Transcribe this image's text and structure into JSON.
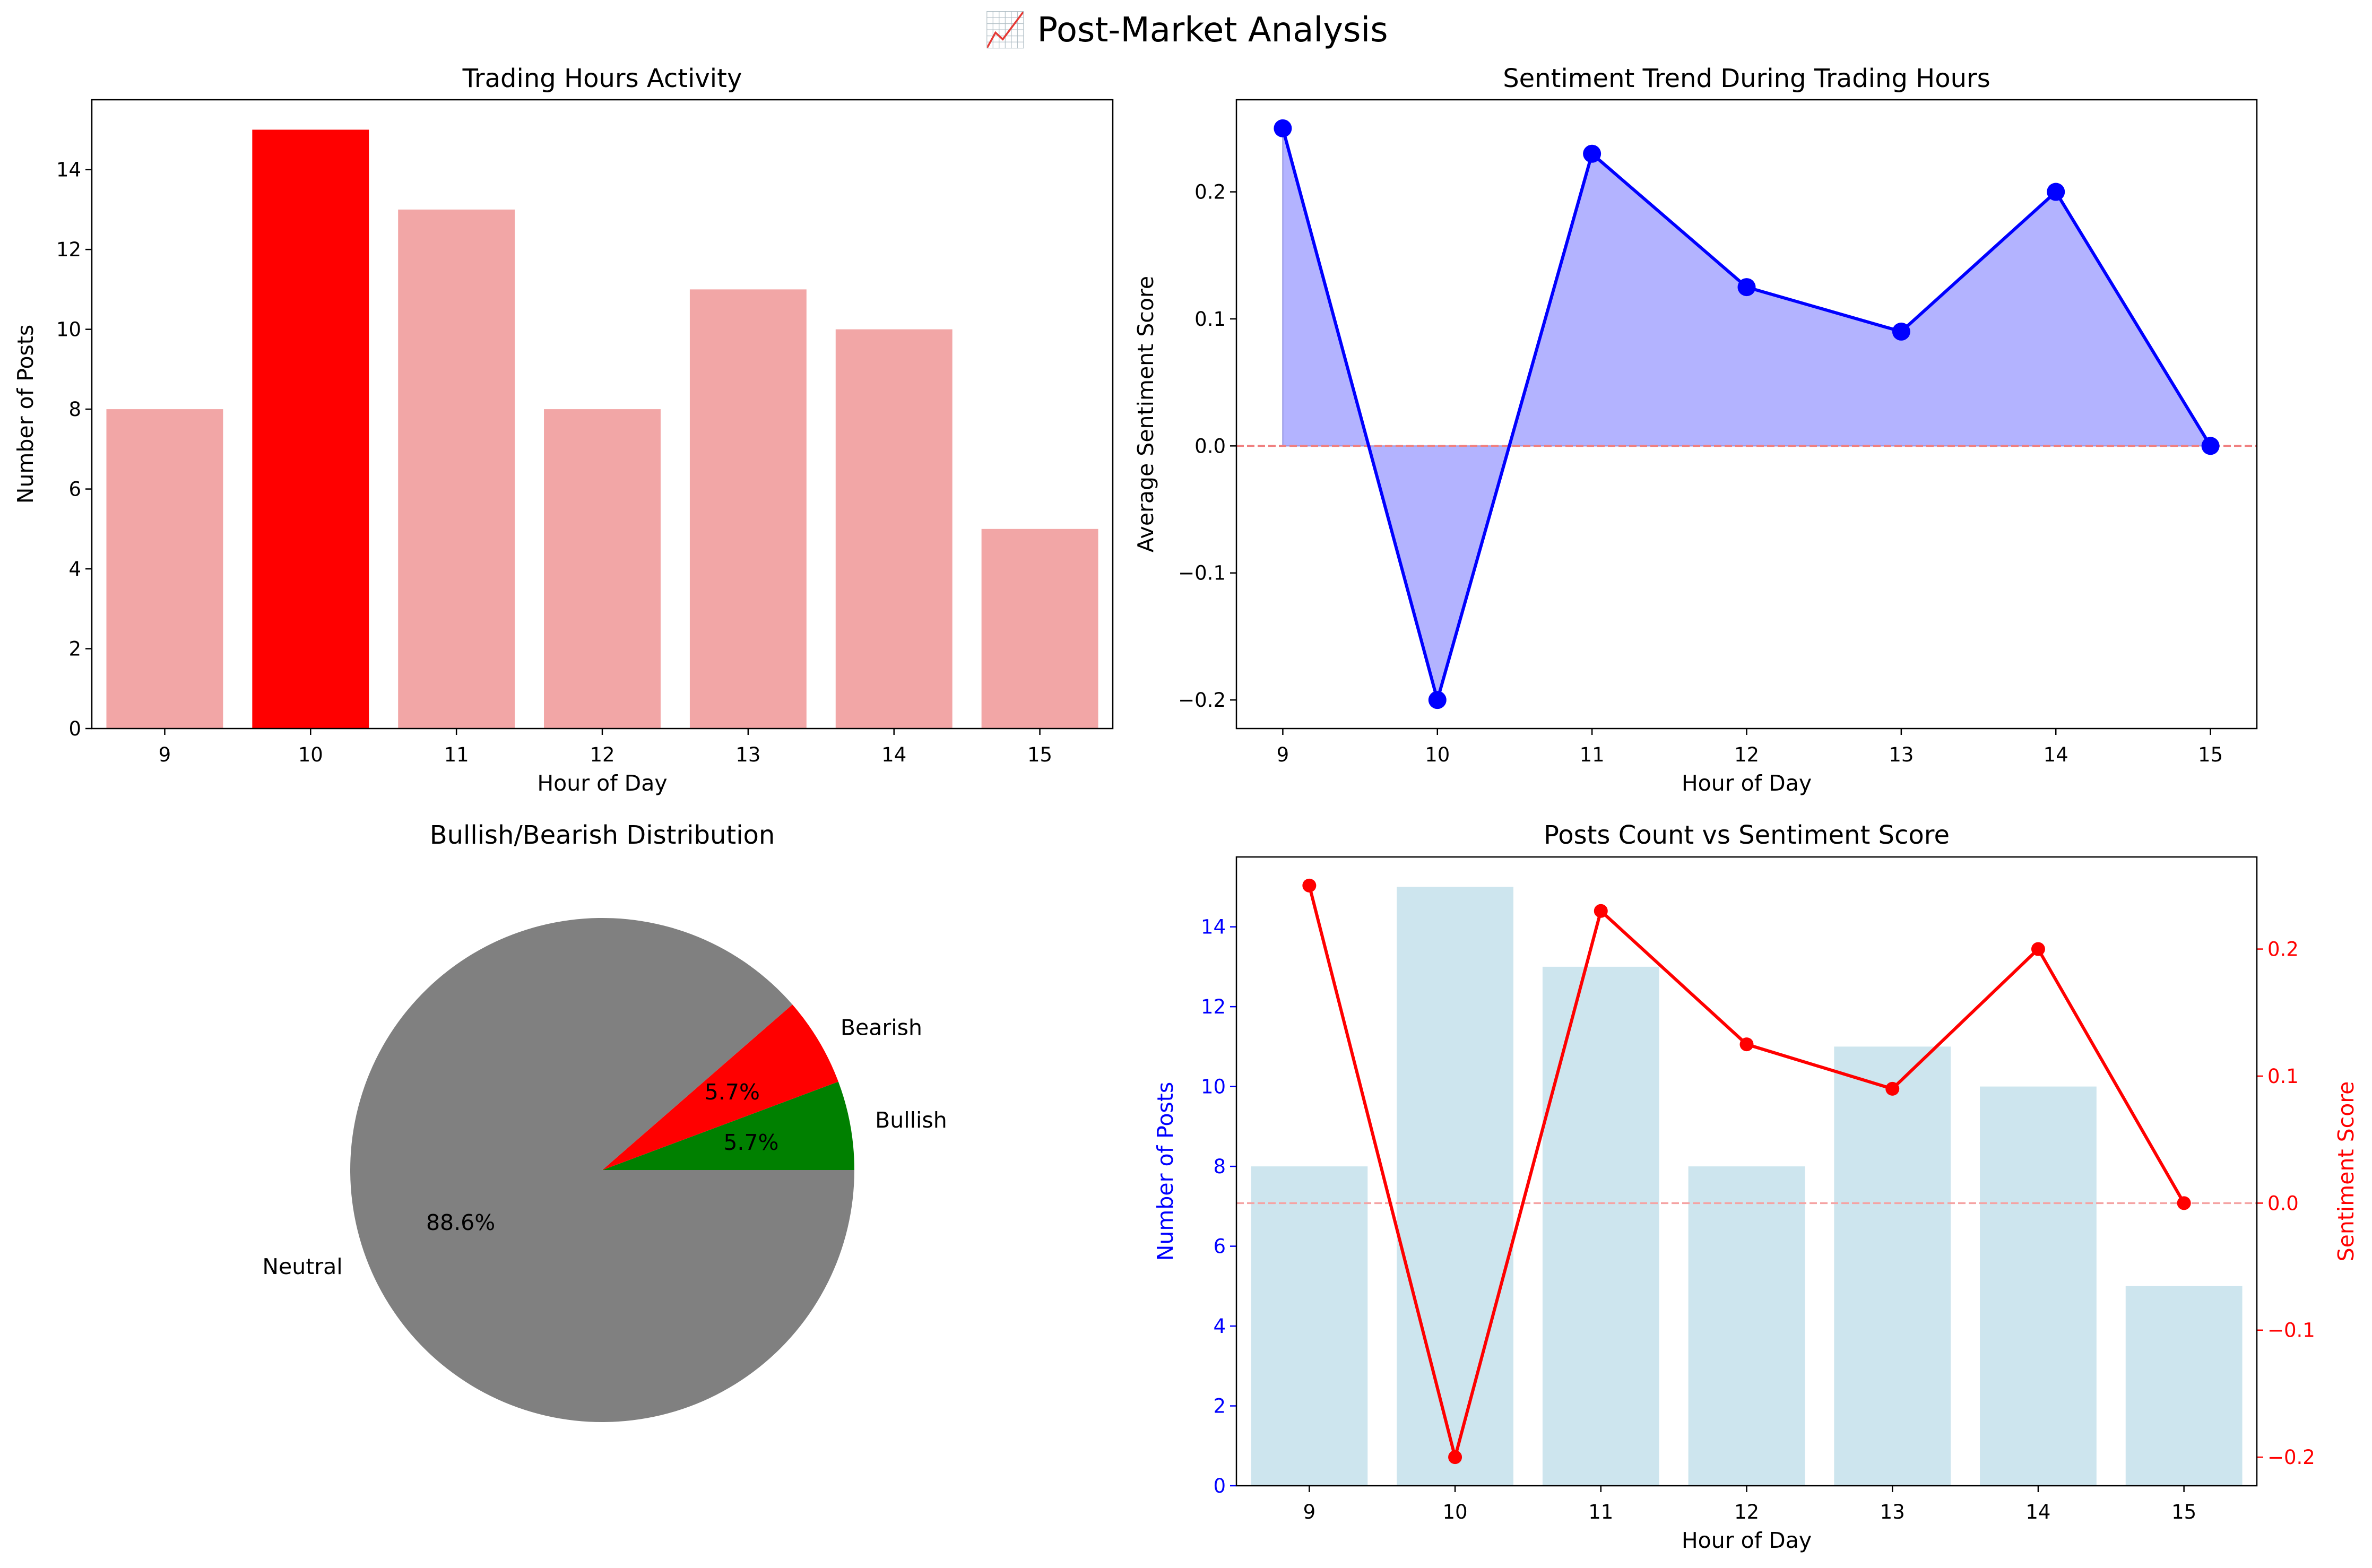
{
  "figure": {
    "title": "📈 Post-Market Analysis"
  },
  "chart_data": [
    {
      "type": "bar",
      "title": "Trading Hours Activity",
      "xlabel": "Hour of Day",
      "ylabel": "Number of Posts",
      "categories": [
        "9",
        "10",
        "11",
        "12",
        "13",
        "14",
        "15"
      ],
      "values": [
        8,
        15,
        13,
        8,
        11,
        10,
        5
      ],
      "highlight_index": 1,
      "ylim": [
        0,
        15.75
      ],
      "yticks": [
        0,
        2,
        4,
        6,
        8,
        10,
        12,
        14
      ],
      "colors": {
        "bar": "#f2a6a6",
        "highlight": "#ff0000"
      }
    },
    {
      "type": "area",
      "title": "Sentiment Trend During Trading Hours",
      "xlabel": "Hour of Day",
      "ylabel": "Average Sentiment Score",
      "x": [
        9,
        10,
        11,
        12,
        13,
        14,
        15
      ],
      "y": [
        0.25,
        -0.2,
        0.23,
        0.125,
        0.09,
        0.2,
        0.0
      ],
      "xlim": [
        8.7,
        15.3
      ],
      "ylim": [
        -0.2225,
        0.2725
      ],
      "yticks": [
        -0.2,
        -0.1,
        0.0,
        0.1,
        0.2
      ],
      "yticklabels": [
        "−0.2",
        "−0.1",
        "0.0",
        "0.1",
        "0.2"
      ],
      "reference_line": 0,
      "colors": {
        "line": "#0000ff",
        "fill": "#b3b3ff",
        "reference": "#f08080"
      }
    },
    {
      "type": "pie",
      "title": "Bullish/Bearish Distribution",
      "labels": [
        "Bullish",
        "Bearish",
        "Neutral"
      ],
      "values": [
        5.7,
        5.7,
        88.6
      ],
      "pct_labels": [
        "5.7%",
        "5.7%",
        "88.6%"
      ],
      "colors": [
        "#008000",
        "#ff0000",
        "#808080"
      ]
    },
    {
      "type": "bar",
      "title": "Posts Count vs Sentiment Score",
      "xlabel": "Hour of Day",
      "ylabel": "Number of Posts",
      "categories": [
        "9",
        "10",
        "11",
        "12",
        "13",
        "14",
        "15"
      ],
      "values": [
        8,
        15,
        13,
        8,
        11,
        10,
        5
      ],
      "ylim": [
        0,
        15.75
      ],
      "yticks": [
        0,
        2,
        4,
        6,
        8,
        10,
        12,
        14
      ],
      "series": [
        {
          "name": "Number of Posts",
          "axis": "left",
          "values": [
            8,
            15,
            13,
            8,
            11,
            10,
            5
          ]
        },
        {
          "name": "Sentiment Score",
          "axis": "right",
          "values": [
            0.25,
            -0.2,
            0.23,
            0.125,
            0.09,
            0.2,
            0.0
          ]
        }
      ],
      "y2label": "Sentiment Score",
      "y2lim": [
        -0.2225,
        0.2725
      ],
      "y2ticks": [
        -0.2,
        -0.1,
        0.0,
        0.1,
        0.2
      ],
      "y2ticklabels": [
        "−0.2",
        "−0.1",
        "0.0",
        "0.1",
        "0.2"
      ],
      "reference_line": 0,
      "colors": {
        "bar": "#cde5ee",
        "line": "#ff0000",
        "left_axis": "#0000ff",
        "right_axis": "#ff0000",
        "reference": "#f5a3a3"
      }
    }
  ]
}
